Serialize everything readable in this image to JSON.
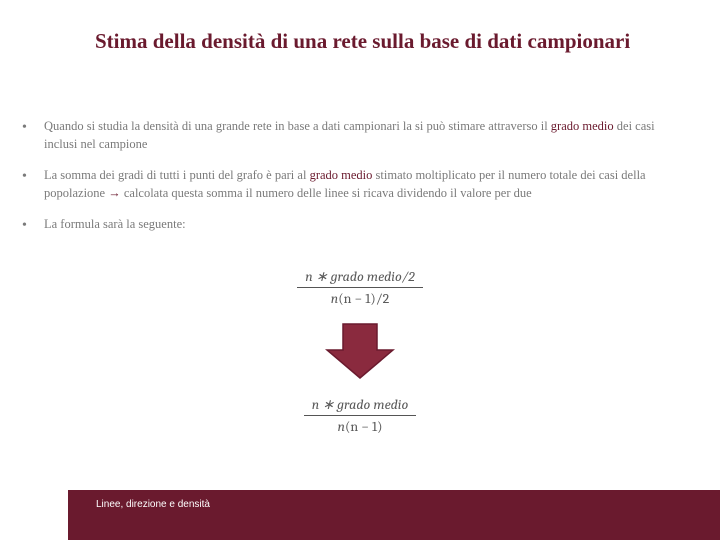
{
  "title": "Stima della densità di una rete sulla base di dati campionari",
  "bullets": [
    {
      "parts": [
        {
          "text": "Quando si studia la densità di una grande rete  in base a dati campionari la si può stimare attraverso il ",
          "kw": false
        },
        {
          "text": "grado medio",
          "kw": true
        },
        {
          "text": " dei casi inclusi nel campione",
          "kw": false
        }
      ]
    },
    {
      "parts": [
        {
          "text": "La somma dei gradi di tutti i punti del grafo  è pari al ",
          "kw": false
        },
        {
          "text": "grado medio",
          "kw": true
        },
        {
          "text": " stimato moltiplicato per il numero totale dei casi della popolazione  ",
          "kw": false
        },
        {
          "text": "→",
          "kw": false,
          "arrow": true
        },
        {
          "text": "  calcolata questa somma il numero delle linee si ricava dividendo il valore per due",
          "kw": false
        }
      ]
    },
    {
      "parts": [
        {
          "text": "La formula sarà la seguente:",
          "kw": false
        }
      ]
    }
  ],
  "formula1": {
    "num_n": "n",
    "num_rest": " ∗ grado medio/2",
    "den_n": "n",
    "den_paren": "(n − 1)/2"
  },
  "formula2": {
    "num_n": "n",
    "num_rest": " ∗ grado medio",
    "den_n": "n",
    "den_paren": "(n − 1)"
  },
  "arrow": {
    "fill": "#8a2a3e",
    "stroke": "#6a1a2e"
  },
  "footer": {
    "text": "Linee, direzione e densità",
    "bar_color": "#6a1a2e"
  }
}
